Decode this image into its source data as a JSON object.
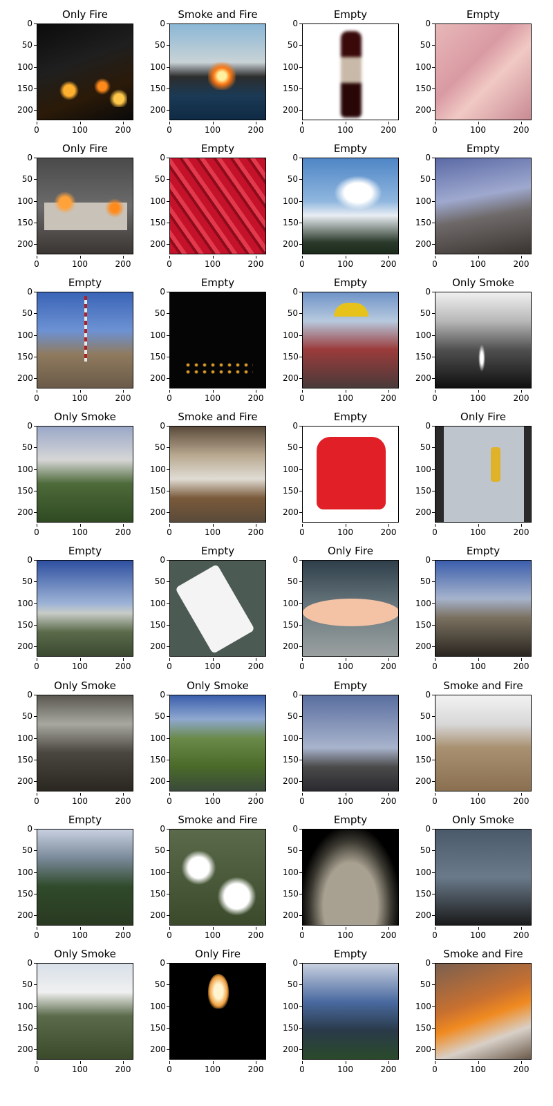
{
  "panels": [
    {
      "title": "Only Fire",
      "scene": "fire-night"
    },
    {
      "title": "Smoke and Fire",
      "scene": "ship"
    },
    {
      "title": "Empty",
      "scene": "bottle"
    },
    {
      "title": "Empty",
      "scene": "hair"
    },
    {
      "title": "Only Fire",
      "scene": "bus"
    },
    {
      "title": "Empty",
      "scene": "pepper"
    },
    {
      "title": "Empty",
      "scene": "cloud"
    },
    {
      "title": "Empty",
      "scene": "hill"
    },
    {
      "title": "Empty",
      "scene": "tower"
    },
    {
      "title": "Empty",
      "scene": "night"
    },
    {
      "title": "Empty",
      "scene": "kid"
    },
    {
      "title": "Only Smoke",
      "scene": "smoke-gray"
    },
    {
      "title": "Only Smoke",
      "scene": "forest-smoke"
    },
    {
      "title": "Smoke and Fire",
      "scene": "smoke-fire"
    },
    {
      "title": "Empty",
      "scene": "sweater"
    },
    {
      "title": "Only Fire",
      "scene": "firefighter"
    },
    {
      "title": "Empty",
      "scene": "valley"
    },
    {
      "title": "Empty",
      "scene": "bag"
    },
    {
      "title": "Only Fire",
      "scene": "candle"
    },
    {
      "title": "Empty",
      "scene": "rocky"
    },
    {
      "title": "Only Smoke",
      "scene": "darksmoke"
    },
    {
      "title": "Only Smoke",
      "scene": "aerial"
    },
    {
      "title": "Empty",
      "scene": "roof"
    },
    {
      "title": "Smoke and Fire",
      "scene": "field"
    },
    {
      "title": "Empty",
      "scene": "trees"
    },
    {
      "title": "Smoke and Fire",
      "scene": "snow"
    },
    {
      "title": "Empty",
      "scene": "fisheye"
    },
    {
      "title": "Only Smoke",
      "scene": "blur"
    },
    {
      "title": "Only Smoke",
      "scene": "mountain-smoke"
    },
    {
      "title": "Only Fire",
      "scene": "match"
    },
    {
      "title": "Empty",
      "scene": "greenhill"
    },
    {
      "title": "Smoke and Fire",
      "scene": "inferno"
    }
  ],
  "yticks": [
    "0",
    "50",
    "100",
    "150",
    "200"
  ],
  "xticks": [
    "0",
    "100",
    "200"
  ],
  "image_size": 224
}
